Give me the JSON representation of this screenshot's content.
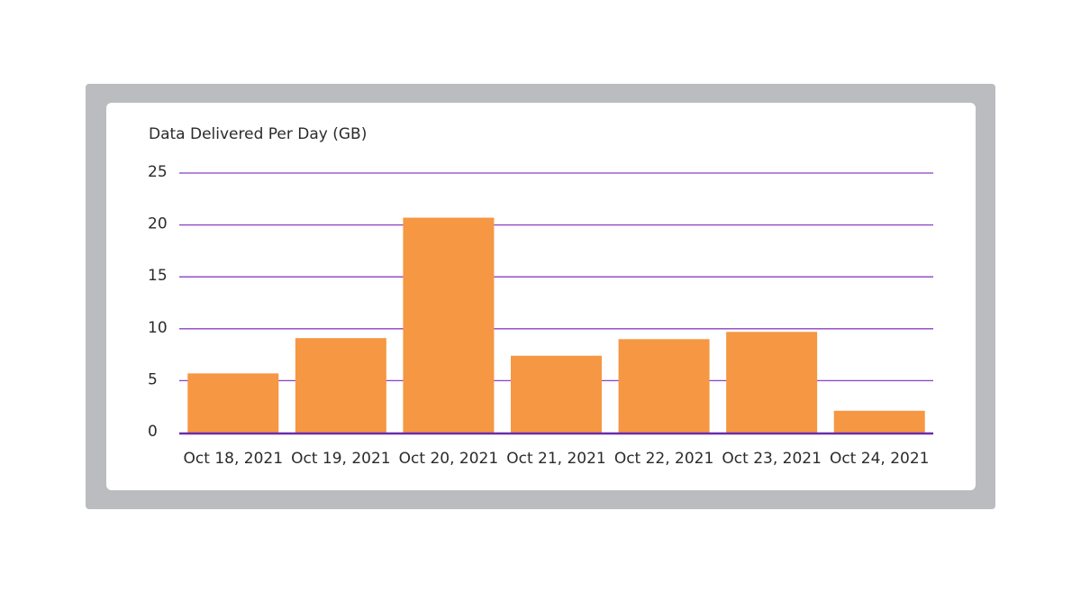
{
  "chart_data": {
    "type": "bar",
    "title": "Data Delivered Per Day (GB)",
    "xlabel": "",
    "ylabel": "",
    "categories": [
      "Oct 18, 2021",
      "Oct 19, 2021",
      "Oct 20, 2021",
      "Oct 21, 2021",
      "Oct 22, 2021",
      "Oct 23, 2021",
      "Oct 24, 2021"
    ],
    "values": [
      5.7,
      9.1,
      20.7,
      7.4,
      9.0,
      9.7,
      2.1
    ],
    "ylim": [
      0,
      25
    ],
    "yticks": [
      0,
      5,
      10,
      15,
      20,
      25
    ],
    "grid": true,
    "legend": "none",
    "colors": {
      "bar": "#f59743",
      "gridline": "#8b3fc6",
      "baseline": "#6a2cae",
      "frame": "#bbbcc0",
      "card": "#ffffff",
      "text": "#2b2b2b"
    }
  }
}
